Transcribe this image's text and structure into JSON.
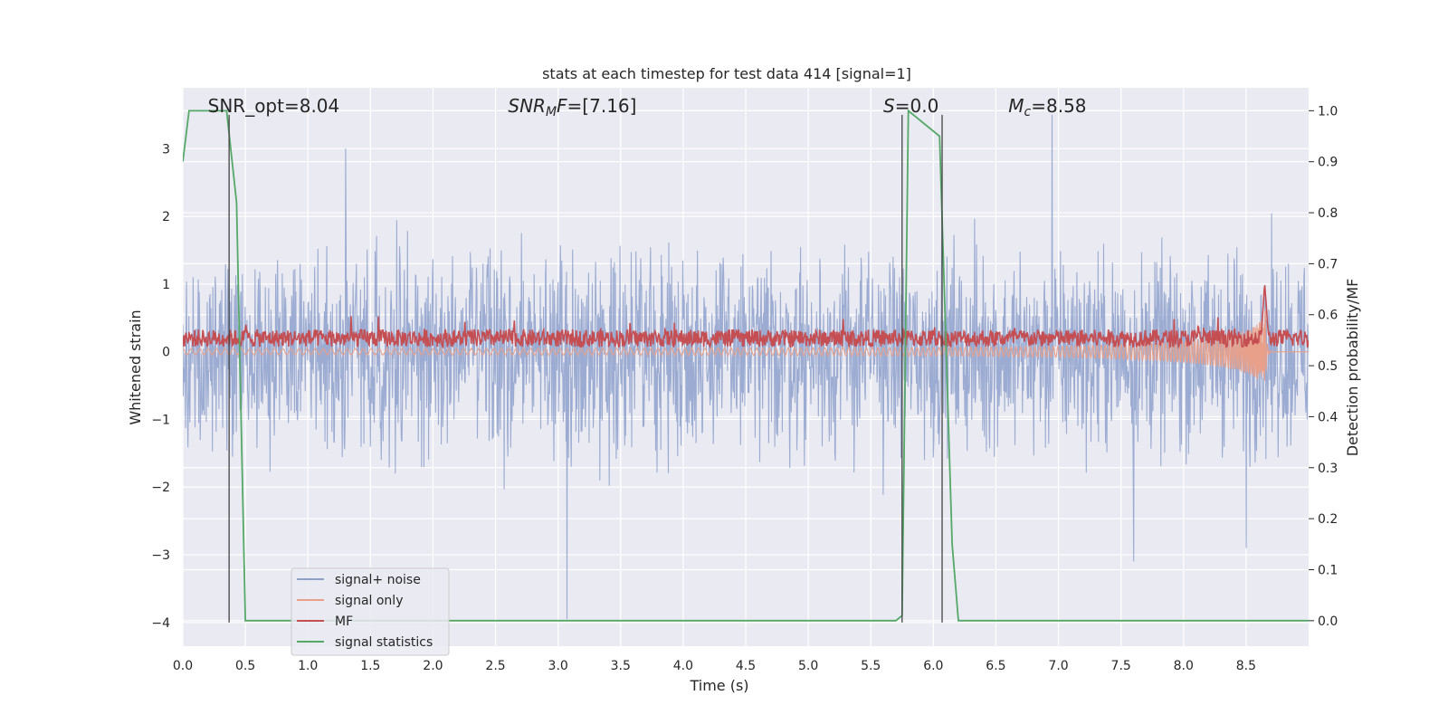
{
  "chart_data": {
    "type": "line",
    "title": "stats at each timestep for test data 414 [signal=1]",
    "xlabel": "Time (s)",
    "ylabel": "Whitened strain",
    "y2label": "Detection probability/MF",
    "xlim": [
      0.0,
      9.0
    ],
    "ylim": [
      -4.35,
      3.9
    ],
    "y2lim": [
      -0.05,
      1.045
    ],
    "xticks": [
      0.0,
      0.5,
      1.0,
      1.5,
      2.0,
      2.5,
      3.0,
      3.5,
      4.0,
      4.5,
      5.0,
      5.5,
      6.0,
      6.5,
      7.0,
      7.5,
      8.0,
      8.5
    ],
    "xtick_labels": [
      "0.0",
      "0.5",
      "1.0",
      "1.5",
      "2.0",
      "2.5",
      "3.0",
      "3.5",
      "4.0",
      "4.5",
      "5.0",
      "5.5",
      "6.0",
      "6.5",
      "7.0",
      "7.5",
      "8.0",
      "8.5"
    ],
    "yticks": [
      -4,
      -3,
      -2,
      -1,
      0,
      1,
      2,
      3
    ],
    "ytick_labels": [
      "−4",
      "−3",
      "−2",
      "−1",
      "0",
      "1",
      "2",
      "3"
    ],
    "y2ticks": [
      0.0,
      0.1,
      0.2,
      0.3,
      0.4,
      0.5,
      0.6,
      0.7,
      0.8,
      0.9,
      1.0
    ],
    "y2tick_labels": [
      "0.0",
      "0.1",
      "0.2",
      "0.3",
      "0.4",
      "0.5",
      "0.6",
      "0.7",
      "0.8",
      "0.9",
      "1.0"
    ],
    "grid": true,
    "legend_position": "lower-left",
    "annotations": [
      {
        "id": "snr-opt",
        "x": 0.2,
        "text": "SNR_opt=8.04",
        "italic": false
      },
      {
        "id": "snr-mf",
        "x": 2.6,
        "text": "SNR_MF=[7.16]",
        "rich": [
          {
            "t": "SNR",
            "i": true
          },
          {
            "t": "M",
            "i": true,
            "sub": true
          },
          {
            "t": "F",
            "i": true
          },
          {
            "t": "=[7.16]",
            "i": false
          }
        ]
      },
      {
        "id": "s-stat",
        "x": 5.6,
        "text": "S=0.0",
        "rich": [
          {
            "t": "S",
            "i": true
          },
          {
            "t": "=0.0",
            "i": false
          }
        ]
      },
      {
        "id": "mc",
        "x": 6.6,
        "text": "M_c=8.58",
        "rich": [
          {
            "t": "M",
            "i": true
          },
          {
            "t": "c",
            "i": true,
            "sub": true
          },
          {
            "t": "=8.58",
            "i": false
          }
        ]
      }
    ],
    "vlines": [
      {
        "x": 0.37,
        "y_from": -4.0,
        "y_to": 3.5
      },
      {
        "x": 5.75,
        "y_from": -4.0,
        "y_to": 3.5
      },
      {
        "x": 6.07,
        "y_from": -4.0,
        "y_to": 3.5
      }
    ],
    "series": [
      {
        "name": "signal+ noise",
        "color": "#8da0cb",
        "axis": "left",
        "kind": "noise",
        "amplitude_envelope": [
          1.2,
          3.4
        ],
        "extreme_peaks": [
          [
            1.3,
            3.0
          ],
          [
            3.07,
            -4.0
          ],
          [
            6.95,
            3.5
          ],
          [
            7.6,
            -3.1
          ],
          [
            8.5,
            -2.9
          ]
        ]
      },
      {
        "name": "signal only",
        "color": "#e8a08a",
        "axis": "left",
        "kind": "chirp",
        "start_amplitude": 0.03,
        "peak_time": 8.65,
        "peak_amplitude": 0.95
      },
      {
        "name": "MF",
        "color": "#c44e52",
        "axis": "left",
        "kind": "band",
        "baseline": 0.2,
        "band_halfwidth": 0.13,
        "peak_time": 8.65,
        "peak_value": 1.0
      },
      {
        "name": "signal statistics",
        "color": "#55a868",
        "axis": "right",
        "x": [
          0.0,
          0.05,
          0.35,
          0.43,
          0.5,
          5.7,
          5.75,
          5.8,
          6.05,
          6.15,
          6.2,
          9.0
        ],
        "y": [
          0.9,
          1.0,
          1.0,
          0.82,
          0.0,
          0.0,
          0.01,
          1.0,
          0.95,
          0.15,
          0.0,
          0.0
        ]
      }
    ],
    "legend": [
      {
        "label": "signal+ noise",
        "color": "#8da0cb"
      },
      {
        "label": "signal only",
        "color": "#e8a08a"
      },
      {
        "label": "MF",
        "color": "#c44e52"
      },
      {
        "label": "signal statistics",
        "color": "#55a868"
      }
    ]
  }
}
